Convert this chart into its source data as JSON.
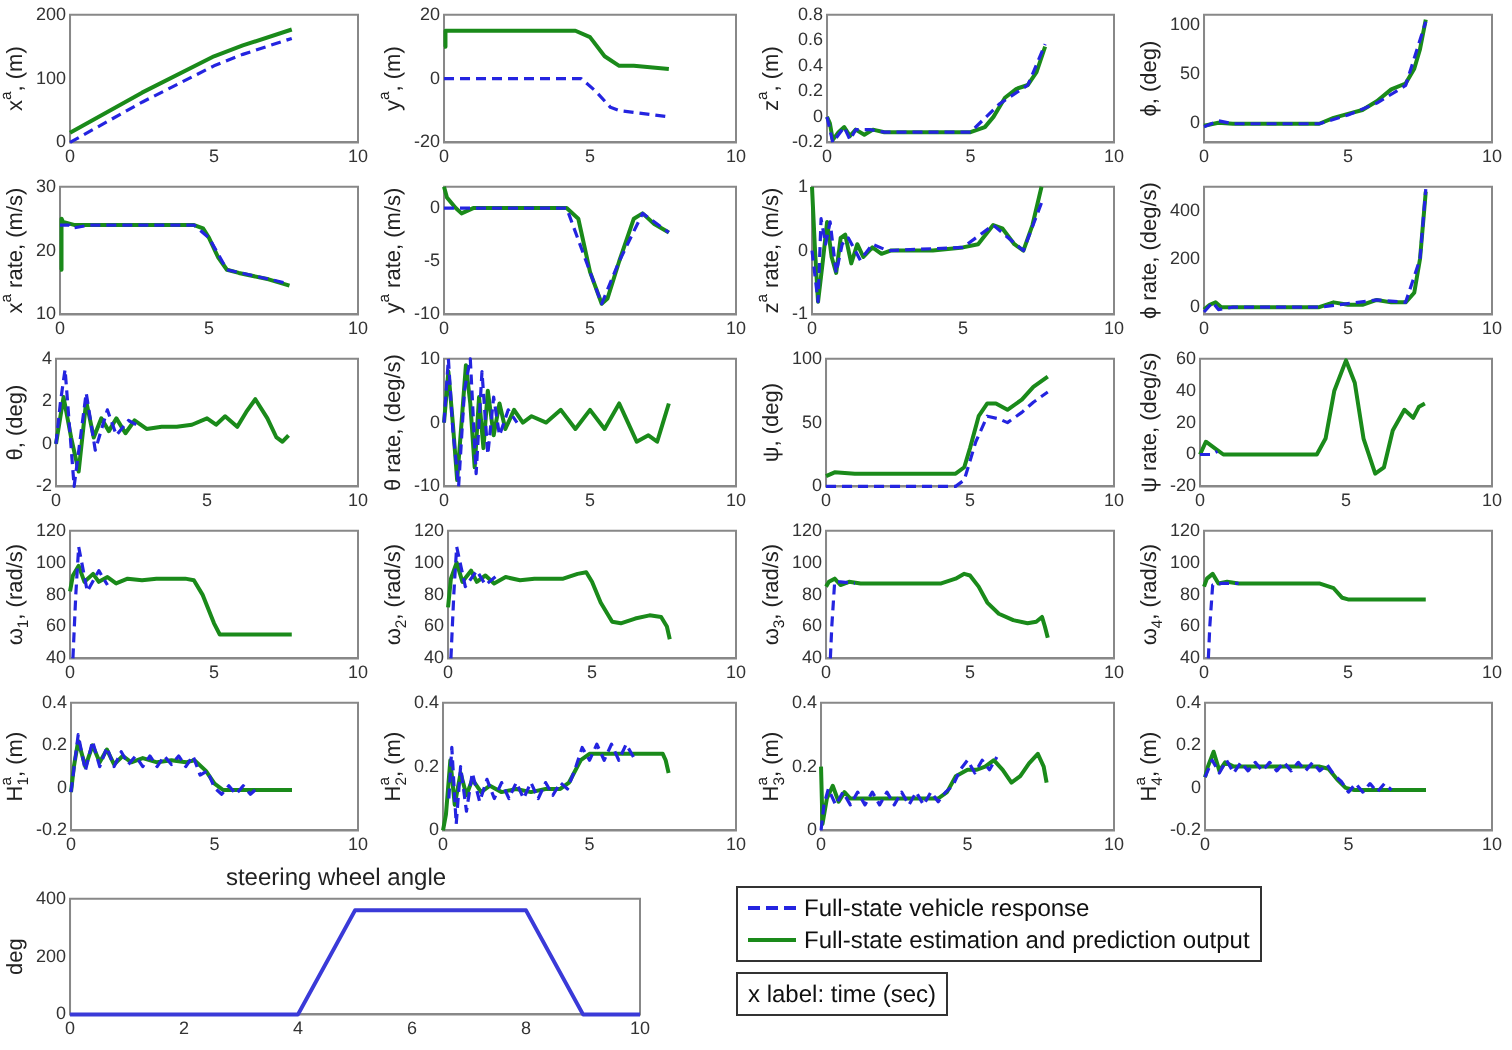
{
  "chart_data": [
    {
      "type": "line",
      "ylabel": "x$^{a}$, (m)",
      "xlim": [
        0,
        10
      ],
      "xticks": [
        0,
        5,
        10
      ],
      "ylim": [
        0,
        200
      ],
      "yticks": [
        0,
        100,
        200
      ],
      "series": [
        {
          "color": "#2424e0",
          "line_style": "dashed",
          "x": [
            0,
            2.5,
            5,
            6,
            7.7
          ],
          "values": [
            0,
            63,
            120,
            138,
            163
          ]
        },
        {
          "color": "#1a8a1a",
          "line_style": "solid",
          "x": [
            0,
            2.5,
            5,
            6,
            7.7
          ],
          "values": [
            15,
            78,
            135,
            152,
            177
          ]
        }
      ]
    },
    {
      "type": "line",
      "ylabel": "y$^{a}$, (m)",
      "xlim": [
        0,
        10
      ],
      "xticks": [
        0,
        5,
        10
      ],
      "ylim": [
        -20,
        20
      ],
      "yticks": [
        -20,
        0,
        20
      ],
      "series": [
        {
          "color": "#2424e0",
          "line_style": "dashed",
          "x": [
            0,
            4.7,
            5.2,
            5.7,
            6,
            7.7
          ],
          "values": [
            0,
            0,
            -4,
            -9,
            -10,
            -12
          ]
        },
        {
          "color": "#1a8a1a",
          "line_style": "solid",
          "x": [
            0,
            0.05,
            4.5,
            5,
            5.5,
            6,
            6.5,
            7.7
          ],
          "values": [
            10,
            15,
            15,
            13,
            7,
            4,
            4,
            3
          ]
        }
      ]
    },
    {
      "type": "line",
      "ylabel": "z$^{a}$, (m)",
      "xlim": [
        0,
        10
      ],
      "xticks": [
        0,
        5,
        10
      ],
      "ylim": [
        -0.2,
        0.8
      ],
      "yticks": [
        -0.2,
        0,
        0.2,
        0.4,
        0.6,
        0.8
      ],
      "series": [
        {
          "color": "#2424e0",
          "line_style": "dashed",
          "x": [
            0,
            0.2,
            0.4,
            0.6,
            0.8,
            1,
            1.5,
            2,
            5,
            6,
            7,
            7.6
          ],
          "values": [
            0,
            -0.2,
            -0.14,
            -0.08,
            -0.18,
            -0.1,
            -0.1,
            -0.12,
            -0.12,
            0.1,
            0.25,
            0.57
          ]
        },
        {
          "color": "#1a8a1a",
          "line_style": "solid",
          "x": [
            0,
            0.1,
            0.2,
            0.4,
            0.6,
            0.8,
            1.0,
            1.3,
            1.6,
            2,
            3,
            4,
            5,
            5.5,
            5.8,
            6.2,
            6.6,
            7,
            7.3,
            7.6
          ],
          "values": [
            0,
            -0.05,
            -0.18,
            -0.12,
            -0.08,
            -0.15,
            -0.1,
            -0.14,
            -0.1,
            -0.12,
            -0.12,
            -0.12,
            -0.12,
            -0.08,
            0,
            0.15,
            0.22,
            0.25,
            0.35,
            0.55
          ]
        }
      ]
    },
    {
      "type": "line",
      "ylabel": "ϕ, (deg)",
      "xlim": [
        0,
        10
      ],
      "xticks": [
        0,
        5,
        10
      ],
      "ylim": [
        -20,
        110
      ],
      "yticks": [
        0,
        50,
        100
      ],
      "series": [
        {
          "color": "#2424e0",
          "line_style": "dashed",
          "x": [
            0,
            0.5,
            1,
            4,
            5,
            6,
            7,
            7.7
          ],
          "values": [
            -4,
            2,
            -1,
            -1,
            8,
            20,
            38,
            103
          ]
        },
        {
          "color": "#1a8a1a",
          "line_style": "solid",
          "x": [
            0,
            0.5,
            1,
            4,
            4.5,
            5,
            5.5,
            6,
            6.5,
            7,
            7.3,
            7.5,
            7.7
          ],
          "values": [
            -3,
            0,
            -1,
            -1,
            5,
            9,
            13,
            22,
            34,
            40,
            55,
            75,
            105
          ]
        }
      ]
    },
    {
      "type": "line",
      "ylabel": "x$^{a}$ rate, (m/s)",
      "xlim": [
        0,
        10
      ],
      "xticks": [
        0,
        5,
        10
      ],
      "ylim": [
        10,
        30
      ],
      "yticks": [
        10,
        20,
        30
      ],
      "series": [
        {
          "color": "#2424e0",
          "line_style": "dashed",
          "x": [
            0,
            0.3,
            0.4,
            1,
            4.5,
            5,
            5.6,
            7.5
          ],
          "values": [
            24,
            24,
            23.5,
            24,
            24,
            22,
            17,
            15
          ]
        },
        {
          "color": "#1a8a1a",
          "line_style": "solid",
          "x": [
            0,
            0.05,
            0.1,
            0.5,
            4.5,
            4.8,
            5,
            5.3,
            5.6,
            6,
            7,
            7.7
          ],
          "values": [
            17,
            25,
            24.5,
            24,
            24,
            23.5,
            22,
            19,
            17,
            16.5,
            15.5,
            14.5
          ]
        }
      ]
    },
    {
      "type": "line",
      "ylabel": "y$^{a}$ rate, (m/s)",
      "xlim": [
        0,
        10
      ],
      "xticks": [
        0,
        5,
        10
      ],
      "ylim": [
        -10,
        2
      ],
      "yticks": [
        -10,
        -5,
        0
      ],
      "series": [
        {
          "color": "#2424e0",
          "line_style": "dashed",
          "x": [
            0,
            0.2,
            0.4,
            1,
            4.2,
            5,
            5.4,
            6,
            6.8,
            7.7
          ],
          "values": [
            0,
            0,
            0,
            0,
            0,
            -6,
            -9,
            -5,
            -0.5,
            -2.3
          ]
        },
        {
          "color": "#1a8a1a",
          "line_style": "solid",
          "x": [
            0,
            0.1,
            0.4,
            0.6,
            1,
            4.2,
            4.6,
            5,
            5.4,
            5.6,
            6,
            6.5,
            6.8,
            7.2,
            7.7
          ],
          "values": [
            2,
            1,
            0,
            -0.5,
            0,
            0,
            -1,
            -6,
            -9,
            -8.5,
            -5,
            -1,
            -0.5,
            -1.5,
            -2.3
          ]
        }
      ]
    },
    {
      "type": "line",
      "ylabel": "z$^{a}$ rate, (m/s)",
      "xlim": [
        0,
        10
      ],
      "xticks": [
        0,
        5,
        10
      ],
      "ylim": [
        -1,
        1
      ],
      "yticks": [
        -1,
        0,
        1
      ],
      "series": [
        {
          "color": "#2424e0",
          "line_style": "dashed",
          "x": [
            0,
            0.2,
            0.3,
            0.45,
            0.6,
            0.8,
            1,
            1.2,
            1.6,
            2,
            2.5,
            5,
            6,
            7,
            7.6
          ],
          "values": [
            0,
            -0.8,
            0.5,
            0.1,
            0.45,
            -0.35,
            0.1,
            0.2,
            -0.15,
            0.1,
            0,
            0.05,
            0.4,
            0,
            0.75
          ]
        },
        {
          "color": "#1a8a1a",
          "line_style": "solid",
          "x": [
            0,
            0.1,
            0.2,
            0.35,
            0.5,
            0.65,
            0.8,
            0.95,
            1.1,
            1.3,
            1.5,
            1.7,
            2,
            2.3,
            2.6,
            3,
            4,
            5,
            5.5,
            6,
            6.3,
            6.7,
            7,
            7.3,
            7.6
          ],
          "values": [
            1,
            0,
            -0.8,
            -0.2,
            0.45,
            -0.1,
            -0.35,
            0.2,
            0.25,
            -0.2,
            0.1,
            -0.1,
            0.05,
            -0.05,
            0,
            0,
            0,
            0.05,
            0.1,
            0.4,
            0.35,
            0.1,
            0,
            0.4,
            1
          ]
        }
      ]
    },
    {
      "type": "line",
      "ylabel": "ϕ rate, (deg/s)",
      "xlim": [
        0,
        10
      ],
      "xticks": [
        0,
        5,
        10
      ],
      "ylim": [
        -30,
        500
      ],
      "yticks": [
        0,
        200,
        400
      ],
      "series": [
        {
          "color": "#2424e0",
          "line_style": "dashed",
          "x": [
            0,
            0.3,
            0.5,
            1,
            4,
            6,
            7,
            7.5,
            7.7
          ],
          "values": [
            -20,
            20,
            -10,
            0,
            0,
            30,
            20,
            200,
            490
          ]
        },
        {
          "color": "#1a8a1a",
          "line_style": "solid",
          "x": [
            0,
            0.2,
            0.4,
            0.6,
            1,
            4,
            4.5,
            5,
            5.5,
            6,
            6.5,
            7,
            7.3,
            7.5,
            7.7
          ],
          "values": [
            -10,
            10,
            20,
            0,
            0,
            0,
            20,
            10,
            10,
            30,
            20,
            20,
            60,
            200,
            480
          ]
        }
      ]
    },
    {
      "type": "line",
      "ylabel": "θ, (deg)",
      "xlim": [
        0,
        10
      ],
      "xticks": [
        0,
        5,
        10
      ],
      "ylim": [
        -2,
        4
      ],
      "yticks": [
        -2,
        0,
        2,
        4
      ],
      "series": [
        {
          "color": "#2424e0",
          "line_style": "dashed",
          "x": [
            0,
            0.15,
            0.3,
            0.6,
            1.0,
            1.3,
            1.7,
            2.0,
            2.4,
            2.8
          ],
          "values": [
            0,
            2,
            3.5,
            -2,
            2.4,
            -0.3,
            1.6,
            0.4,
            1.1,
            0.8
          ]
        },
        {
          "color": "#1a8a1a",
          "line_style": "solid",
          "x": [
            0,
            0.25,
            0.5,
            0.75,
            1.0,
            1.25,
            1.5,
            1.75,
            2,
            2.3,
            2.6,
            3,
            3.5,
            4,
            4.5,
            5,
            5.3,
            5.6,
            6,
            6.3,
            6.6,
            7,
            7.3,
            7.5,
            7.7
          ],
          "values": [
            0,
            2.2,
            0.3,
            -1.3,
            2.0,
            0.3,
            1.2,
            0.6,
            1.2,
            0.5,
            1.1,
            0.7,
            0.8,
            0.8,
            0.9,
            1.2,
            0.9,
            1.3,
            0.8,
            1.5,
            2.1,
            1.2,
            0.3,
            0.1,
            0.4
          ]
        }
      ]
    },
    {
      "type": "line",
      "ylabel": "θ rate, (deg/s)",
      "xlim": [
        0,
        10
      ],
      "xticks": [
        0,
        5,
        10
      ],
      "ylim": [
        -10,
        10
      ],
      "yticks": [
        -10,
        0,
        10
      ],
      "series": [
        {
          "color": "#2424e0",
          "line_style": "dashed",
          "x": [
            0,
            0.15,
            0.3,
            0.5,
            0.7,
            0.9,
            1.1,
            1.3,
            1.5,
            1.7,
            1.9,
            2.2,
            2.5
          ],
          "values": [
            0,
            10,
            -1,
            -10,
            5,
            10,
            -8,
            8,
            -5,
            4,
            -2,
            2,
            0
          ]
        },
        {
          "color": "#1a8a1a",
          "line_style": "solid",
          "x": [
            0,
            0.15,
            0.3,
            0.45,
            0.6,
            0.75,
            0.9,
            1.05,
            1.2,
            1.35,
            1.5,
            1.7,
            1.9,
            2.1,
            2.4,
            2.7,
            3,
            3.5,
            4,
            4.5,
            5,
            5.5,
            6,
            6.3,
            6.6,
            7,
            7.3,
            7.5,
            7.7
          ],
          "values": [
            0,
            8,
            0,
            -9,
            0,
            9,
            3,
            -7,
            4,
            -4,
            5,
            -2,
            3,
            -1,
            2,
            0,
            1,
            0,
            2,
            -1,
            2,
            -1,
            3,
            0,
            -3,
            -2,
            -3,
            0,
            3
          ]
        }
      ]
    },
    {
      "type": "line",
      "ylabel": "ψ, (deg)",
      "xlim": [
        0,
        10
      ],
      "xticks": [
        0,
        5,
        10
      ],
      "ylim": [
        0,
        100
      ],
      "yticks": [
        0,
        50,
        100
      ],
      "series": [
        {
          "color": "#2424e0",
          "line_style": "dashed",
          "x": [
            0,
            4.5,
            4.8,
            5.2,
            5.6,
            6,
            6.3,
            6.8,
            7.2,
            7.7
          ],
          "values": [
            0,
            0,
            5,
            35,
            55,
            53,
            50,
            58,
            66,
            74
          ]
        },
        {
          "color": "#1a8a1a",
          "line_style": "solid",
          "x": [
            0,
            0.3,
            1,
            4.5,
            4.8,
            5,
            5.3,
            5.6,
            5.9,
            6.3,
            6.8,
            7.2,
            7.7
          ],
          "values": [
            8,
            11,
            10,
            10,
            15,
            30,
            55,
            65,
            65,
            60,
            68,
            78,
            86
          ]
        }
      ]
    },
    {
      "type": "line",
      "ylabel": "ψ rate, (deg/s)",
      "xlim": [
        0,
        10
      ],
      "xticks": [
        0,
        5,
        10
      ],
      "ylim": [
        -20,
        60
      ],
      "yticks": [
        -20,
        0,
        20,
        40,
        60
      ],
      "series": [
        {
          "color": "#2424e0",
          "line_style": "dashed",
          "x": [
            0,
            0.4,
            0.6
          ],
          "values": [
            0,
            0,
            2
          ]
        },
        {
          "color": "#1a8a1a",
          "line_style": "solid",
          "x": [
            0,
            0.2,
            0.5,
            0.8,
            1,
            4,
            4.3,
            4.6,
            5,
            5.3,
            5.6,
            6,
            6.3,
            6.6,
            7,
            7.3,
            7.5,
            7.7
          ],
          "values": [
            0,
            8,
            4,
            0,
            0,
            0,
            10,
            40,
            59,
            45,
            10,
            -12,
            -8,
            15,
            28,
            23,
            30,
            32
          ]
        }
      ]
    },
    {
      "type": "line",
      "ylabel": "ω$_{1}$, (rad/s)",
      "xlim": [
        0,
        10
      ],
      "xticks": [
        0,
        5,
        10
      ],
      "ylim": [
        40,
        120
      ],
      "yticks": [
        40,
        60,
        80,
        100,
        120
      ],
      "series": [
        {
          "color": "#2424e0",
          "line_style": "dashed",
          "x": [
            0.1,
            0.2,
            0.3,
            0.6,
            1.0,
            1.3
          ],
          "values": [
            40,
            80,
            110,
            82,
            95,
            86
          ]
        },
        {
          "color": "#1a8a1a",
          "line_style": "solid",
          "x": [
            0,
            0.1,
            0.3,
            0.5,
            0.8,
            1.0,
            1.3,
            1.6,
            2,
            2.5,
            3,
            4,
            4.3,
            4.6,
            5,
            5.2,
            7.7
          ],
          "values": [
            82,
            92,
            98,
            88,
            93,
            88,
            91,
            87,
            90,
            89,
            90,
            90,
            89,
            80,
            62,
            55,
            55
          ]
        }
      ]
    },
    {
      "type": "line",
      "ylabel": "ω$_{2}$, (rad/s)",
      "xlim": [
        0,
        10
      ],
      "xticks": [
        0,
        5,
        10
      ],
      "ylim": [
        40,
        120
      ],
      "yticks": [
        40,
        60,
        80,
        100,
        120
      ],
      "series": [
        {
          "color": "#2424e0",
          "line_style": "dashed",
          "x": [
            0.1,
            0.2,
            0.3,
            0.6,
            1.0,
            1.3,
            1.7
          ],
          "values": [
            40,
            80,
            110,
            85,
            95,
            86,
            92
          ]
        },
        {
          "color": "#1a8a1a",
          "line_style": "solid",
          "x": [
            0,
            0.1,
            0.3,
            0.5,
            0.8,
            1,
            1.3,
            1.6,
            2,
            2.5,
            3,
            4,
            4.5,
            4.8,
            5,
            5.3,
            5.7,
            6,
            6.5,
            7,
            7.4,
            7.6,
            7.7
          ],
          "values": [
            72,
            90,
            100,
            88,
            95,
            88,
            92,
            87,
            91,
            89,
            90,
            90,
            93,
            94,
            88,
            75,
            63,
            62,
            65,
            67,
            66,
            60,
            52
          ]
        }
      ]
    },
    {
      "type": "line",
      "ylabel": "ω$_{3}$, (rad/s)",
      "xlim": [
        0,
        10
      ],
      "xticks": [
        0,
        5,
        10
      ],
      "ylim": [
        40,
        120
      ],
      "yticks": [
        40,
        60,
        80,
        100,
        120
      ],
      "series": [
        {
          "color": "#2424e0",
          "line_style": "dashed",
          "x": [
            0.15,
            0.2,
            0.3,
            0.5,
            1.0
          ],
          "values": [
            40,
            60,
            88,
            88,
            87
          ]
        },
        {
          "color": "#1a8a1a",
          "line_style": "solid",
          "x": [
            0,
            0.1,
            0.3,
            0.5,
            0.8,
            1.2,
            2,
            3,
            4,
            4.5,
            4.8,
            5,
            5.3,
            5.6,
            6,
            6.5,
            7,
            7.3,
            7.5,
            7.6,
            7.7
          ],
          "values": [
            85,
            88,
            90,
            86,
            88,
            87,
            87,
            87,
            87,
            90,
            93,
            92,
            85,
            75,
            68,
            64,
            62,
            63,
            66,
            60,
            53
          ]
        }
      ]
    },
    {
      "type": "line",
      "ylabel": "ω$_{4}$, (rad/s)",
      "xlim": [
        0,
        10
      ],
      "xticks": [
        0,
        5,
        10
      ],
      "ylim": [
        40,
        120
      ],
      "yticks": [
        40,
        60,
        80,
        100,
        120
      ],
      "series": [
        {
          "color": "#2424e0",
          "line_style": "dashed",
          "x": [
            0.15,
            0.2,
            0.3,
            0.6,
            1.2
          ],
          "values": [
            40,
            60,
            86,
            87,
            87
          ]
        },
        {
          "color": "#1a8a1a",
          "line_style": "solid",
          "x": [
            0,
            0.1,
            0.3,
            0.5,
            0.8,
            1.2,
            4,
            4.5,
            4.8,
            5,
            7.7
          ],
          "values": [
            85,
            90,
            93,
            87,
            88,
            87,
            87,
            84,
            78,
            77,
            77
          ]
        }
      ]
    },
    {
      "type": "line",
      "ylabel": "H$^{a}$$_{1}$, (m)",
      "xlim": [
        0,
        10
      ],
      "xticks": [
        0,
        5,
        10
      ],
      "ylim": [
        -0.2,
        0.4
      ],
      "yticks": [
        -0.2,
        0,
        0.2,
        0.4
      ],
      "series": [
        {
          "color": "#2424e0",
          "line_style": "dashed",
          "x": [
            0,
            0.25,
            0.5,
            0.75,
            1,
            1.25,
            1.5,
            1.75,
            2,
            2.25,
            2.5,
            2.75,
            3,
            3.25,
            3.5,
            3.75,
            4,
            4.25,
            4.5,
            4.75,
            5,
            5.25,
            5.5,
            5.75,
            6,
            6.25,
            6.5
          ],
          "values": [
            -0.02,
            0.25,
            0.08,
            0.22,
            0.1,
            0.19,
            0.1,
            0.17,
            0.11,
            0.15,
            0.1,
            0.15,
            0.1,
            0.15,
            0.11,
            0.15,
            0.1,
            0.15,
            0.06,
            0.08,
            0,
            -0.03,
            0.01,
            -0.03,
            0.01,
            -0.03,
            0
          ]
        },
        {
          "color": "#1a8a1a",
          "line_style": "solid",
          "x": [
            0,
            0.1,
            0.25,
            0.5,
            0.75,
            1,
            1.25,
            1.5,
            1.8,
            2.1,
            2.5,
            3,
            3.5,
            4,
            4.3,
            4.7,
            5,
            5.3,
            6,
            7.7
          ],
          "values": [
            -0.02,
            0.1,
            0.22,
            0.1,
            0.2,
            0.12,
            0.18,
            0.11,
            0.15,
            0.12,
            0.14,
            0.12,
            0.13,
            0.12,
            0.13,
            0.08,
            0.02,
            -0.01,
            -0.01,
            -0.01
          ]
        }
      ]
    },
    {
      "type": "line",
      "ylabel": "H$^{a}$$_{2}$, (m)",
      "xlim": [
        0,
        10
      ],
      "xticks": [
        0,
        5,
        10
      ],
      "ylim": [
        0,
        0.4
      ],
      "yticks": [
        0,
        0.2,
        0.4
      ],
      "series": [
        {
          "color": "#2424e0",
          "line_style": "dashed",
          "x": [
            0.2,
            0.3,
            0.45,
            0.6,
            0.8,
            1,
            1.25,
            1.5,
            1.75,
            2,
            2.25,
            2.5,
            2.75,
            3,
            3.25,
            3.5,
            3.75,
            4,
            4.25,
            4.5,
            4.75,
            5,
            5.25,
            5.5,
            5.75,
            6,
            6.25,
            6.5
          ],
          "values": [
            0.1,
            0.26,
            0.02,
            0.2,
            0.06,
            0.18,
            0.09,
            0.16,
            0.1,
            0.15,
            0.1,
            0.15,
            0.1,
            0.15,
            0.1,
            0.15,
            0.11,
            0.15,
            0.13,
            0.19,
            0.26,
            0.22,
            0.27,
            0.22,
            0.27,
            0.22,
            0.27,
            0.23
          ]
        },
        {
          "color": "#1a8a1a",
          "line_style": "solid",
          "x": [
            0,
            0.1,
            0.25,
            0.4,
            0.6,
            0.8,
            1,
            1.3,
            1.6,
            2,
            2.5,
            3,
            3.5,
            4,
            4.3,
            4.7,
            5,
            5.5,
            6,
            6.5,
            7,
            7.5,
            7.6,
            7.7
          ],
          "values": [
            0,
            0.05,
            0.22,
            0.08,
            0.18,
            0.11,
            0.16,
            0.12,
            0.14,
            0.12,
            0.13,
            0.12,
            0.13,
            0.13,
            0.15,
            0.22,
            0.24,
            0.24,
            0.24,
            0.24,
            0.24,
            0.24,
            0.22,
            0.18
          ]
        }
      ]
    },
    {
      "type": "line",
      "ylabel": "H$^{a}$$_{3}$, (m)",
      "xlim": [
        0,
        10
      ],
      "xticks": [
        0,
        5,
        10
      ],
      "ylim": [
        0,
        0.4
      ],
      "yticks": [
        0,
        0.2,
        0.4
      ],
      "series": [
        {
          "color": "#2424e0",
          "line_style": "dashed",
          "x": [
            0,
            0.1,
            0.25,
            0.5,
            0.75,
            1,
            1.25,
            1.5,
            1.75,
            2,
            2.25,
            2.5,
            2.75,
            3,
            3.25,
            3.5,
            3.75,
            4,
            4.25,
            4.5,
            4.75,
            5,
            5.25,
            5.5,
            5.75,
            6
          ],
          "values": [
            0,
            0.08,
            0.13,
            0.08,
            0.12,
            0.08,
            0.12,
            0.08,
            0.12,
            0.08,
            0.12,
            0.08,
            0.12,
            0.08,
            0.12,
            0.08,
            0.12,
            0.09,
            0.12,
            0.14,
            0.19,
            0.22,
            0.18,
            0.22,
            0.19,
            0.23
          ]
        },
        {
          "color": "#1a8a1a",
          "line_style": "solid",
          "x": [
            0,
            0.05,
            0.2,
            0.4,
            0.6,
            0.8,
            1,
            1.5,
            2,
            3,
            4,
            4.3,
            4.6,
            5,
            5.3,
            5.6,
            5.9,
            6.2,
            6.5,
            6.8,
            7.1,
            7.4,
            7.6,
            7.7
          ],
          "values": [
            0.2,
            0.02,
            0.1,
            0.14,
            0.09,
            0.12,
            0.1,
            0.1,
            0.1,
            0.1,
            0.1,
            0.12,
            0.17,
            0.19,
            0.19,
            0.2,
            0.22,
            0.19,
            0.15,
            0.17,
            0.21,
            0.24,
            0.2,
            0.15
          ]
        }
      ]
    },
    {
      "type": "line",
      "ylabel": "H$^{a}$$_{4}$, (m)",
      "xlim": [
        0,
        10
      ],
      "xticks": [
        0,
        5,
        10
      ],
      "ylim": [
        -0.2,
        0.4
      ],
      "yticks": [
        -0.2,
        0,
        0.2,
        0.4
      ],
      "legend": "bottom",
      "series": [
        {
          "name": "Full-state vehicle response",
          "color": "#2424e0",
          "line_style": "dashed",
          "x": [
            0,
            0.25,
            0.5,
            0.75,
            1,
            1.25,
            1.5,
            1.75,
            2,
            2.25,
            2.5,
            2.75,
            3,
            3.25,
            3.5,
            3.75,
            4,
            4.25,
            4.5,
            4.75,
            5,
            5.25,
            5.5,
            5.75,
            6,
            6.25,
            6.5
          ],
          "values": [
            0.05,
            0.13,
            0.07,
            0.13,
            0.07,
            0.12,
            0.08,
            0.12,
            0.08,
            0.12,
            0.08,
            0.12,
            0.08,
            0.12,
            0.08,
            0.12,
            0.08,
            0.11,
            0.06,
            0.03,
            -0.02,
            0.02,
            -0.02,
            0.02,
            -0.02,
            0.02,
            -0.01
          ]
        },
        {
          "name": "Full-state estimation and prediction output",
          "color": "#1a8a1a",
          "line_style": "solid",
          "x": [
            0,
            0.1,
            0.3,
            0.5,
            0.7,
            1,
            1.5,
            2,
            3,
            4,
            4.3,
            4.6,
            4.9,
            5.2,
            7.7
          ],
          "values": [
            0.05,
            0.1,
            0.17,
            0.08,
            0.12,
            0.1,
            0.1,
            0.1,
            0.1,
            0.1,
            0.09,
            0.04,
            0,
            -0.01,
            -0.01
          ]
        }
      ]
    },
    {
      "type": "line",
      "title": "steering wheel angle",
      "ylabel": "deg",
      "xlim": [
        0,
        10
      ],
      "xticks": [
        0,
        2,
        4,
        6,
        8,
        10
      ],
      "ylim": [
        0,
        400
      ],
      "yticks": [
        0,
        200,
        400
      ],
      "annotations": [
        "x label: time (sec)"
      ],
      "series": [
        {
          "color": "#3a3ad8",
          "line_style": "solid",
          "x": [
            0,
            4,
            5,
            8,
            9,
            10
          ],
          "values": [
            0,
            0,
            360,
            360,
            0,
            0
          ]
        }
      ]
    }
  ]
}
